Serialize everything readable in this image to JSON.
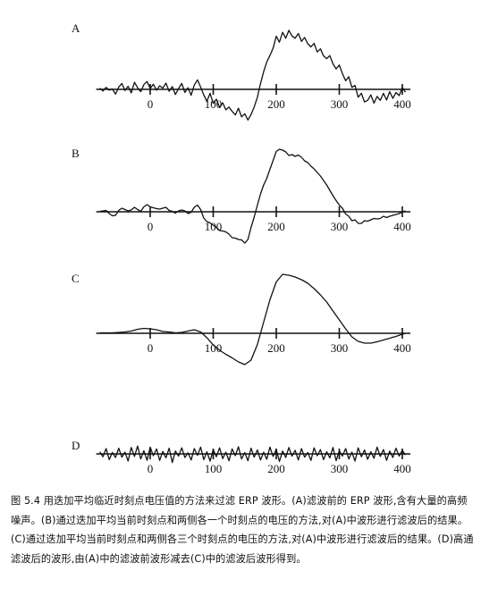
{
  "figure": {
    "caption": "图 5.4  用迭加平均临近时刻点电压值的方法来过滤 ERP 波形。(A)滤波前的 ERP 波形,含有大量的高频噪声。(B)通过迭加平均当前时刻点和两侧各一个时刻点的电压的方法,对(A)中波形进行滤波后的结果。(C)通过迭加平均当前时刻点和两侧各三个时刻点的电压的方法,对(A)中波形进行滤波后的结果。(D)高通滤波后的波形,由(A)中的滤波前波形减去(C)中的滤波后波形得到。"
  },
  "chart_data": [
    {
      "type": "line",
      "panel_label": "A",
      "x_ticks": [
        0,
        100,
        200,
        300,
        400
      ],
      "x_tick_labels": [
        "0",
        "100",
        "200",
        "300",
        "400"
      ],
      "xlim": [
        -80,
        410
      ],
      "series": [
        {
          "x": [
            -80,
            -75,
            -70,
            -65,
            -60,
            -55,
            -50,
            -45,
            -40,
            -35,
            -30,
            -25,
            -20,
            -15,
            -10,
            -5,
            0,
            5,
            10,
            15,
            20,
            25,
            30,
            35,
            40,
            45,
            50,
            55,
            60,
            65,
            70,
            75,
            80,
            85,
            90,
            95,
            100,
            105,
            110,
            115,
            120,
            125,
            130,
            135,
            140,
            145,
            150,
            155,
            160,
            165,
            170,
            175,
            180,
            185,
            190,
            195,
            200,
            205,
            210,
            215,
            220,
            225,
            230,
            235,
            240,
            245,
            250,
            255,
            260,
            265,
            270,
            275,
            280,
            285,
            290,
            295,
            300,
            305,
            310,
            315,
            320,
            325,
            330,
            335,
            340,
            345,
            350,
            355,
            360,
            365,
            370,
            375,
            380,
            385,
            390,
            395,
            400,
            405
          ],
          "y": [
            0.3,
            -0.4,
            0.5,
            -0.2,
            0.1,
            -1.2,
            0.6,
            1.5,
            -0.3,
            0.8,
            -0.9,
            1.8,
            0.4,
            -0.6,
            1.2,
            2.0,
            0.2,
            1.3,
            -0.2,
            0.9,
            0.3,
            1.6,
            -0.5,
            0.7,
            -1.3,
            0.2,
            1.5,
            -0.8,
            0.4,
            -1.5,
            1.1,
            2.4,
            0.6,
            -1.4,
            -3.0,
            -1.0,
            -3.6,
            -2.5,
            -4.6,
            -3.4,
            -5.2,
            -4.5,
            -5.6,
            -6.5,
            -4.8,
            -7.0,
            -6.2,
            -7.8,
            -6.4,
            -4.5,
            -2.0,
            1.5,
            4.5,
            7.0,
            8.6,
            10.5,
            13.5,
            12.0,
            14.5,
            13.0,
            15.0,
            13.6,
            13.0,
            14.2,
            12.2,
            13.2,
            11.6,
            10.8,
            11.7,
            9.5,
            10.3,
            8.5,
            7.8,
            8.6,
            6.5,
            5.2,
            6.2,
            4.0,
            2.2,
            3.2,
            0.5,
            1.0,
            -2.0,
            -1.0,
            -3.2,
            -2.8,
            -1.4,
            -3.5,
            -1.8,
            -2.8,
            -1.0,
            -2.7,
            -0.6,
            -2.3,
            -0.8,
            -1.6,
            0.5,
            -0.7
          ]
        }
      ]
    },
    {
      "type": "line",
      "panel_label": "B",
      "x_ticks": [
        0,
        100,
        200,
        300,
        400
      ],
      "x_tick_labels": [
        "0",
        "100",
        "200",
        "300",
        "400"
      ],
      "xlim": [
        -80,
        410
      ],
      "series": [
        {
          "x": [
            -80,
            -75,
            -70,
            -65,
            -60,
            -55,
            -50,
            -45,
            -40,
            -35,
            -30,
            -25,
            -20,
            -15,
            -10,
            -5,
            0,
            5,
            10,
            15,
            20,
            25,
            30,
            35,
            40,
            45,
            50,
            55,
            60,
            65,
            70,
            75,
            80,
            85,
            90,
            95,
            100,
            105,
            110,
            115,
            120,
            125,
            130,
            135,
            140,
            145,
            150,
            155,
            160,
            165,
            170,
            175,
            180,
            185,
            190,
            195,
            200,
            205,
            210,
            215,
            220,
            225,
            230,
            235,
            240,
            245,
            250,
            255,
            260,
            265,
            270,
            275,
            280,
            285,
            290,
            295,
            300,
            305,
            310,
            315,
            320,
            325,
            330,
            335,
            340,
            345,
            350,
            355,
            360,
            365,
            370,
            375,
            380,
            385,
            390,
            395,
            400,
            405
          ],
          "y": [
            0.1,
            0.2,
            0.3,
            -0.4,
            -0.9,
            -0.8,
            0.3,
            0.8,
            0.5,
            0.2,
            0.4,
            1.0,
            0.5,
            0.1,
            1.1,
            1.6,
            1.1,
            0.9,
            0.7,
            0.6,
            0.8,
            1.0,
            0.3,
            0.1,
            -0.3,
            0.2,
            0.4,
            0.2,
            -0.4,
            -0.1,
            1.0,
            1.5,
            0.5,
            -1.4,
            -2.2,
            -2.5,
            -3.0,
            -3.5,
            -4.2,
            -4.3,
            -4.5,
            -5.0,
            -5.8,
            -5.9,
            -6.2,
            -6.3,
            -7.0,
            -6.2,
            -3.5,
            -1.2,
            1.5,
            4.0,
            6.0,
            7.5,
            9.5,
            11.5,
            13.5,
            14.0,
            13.8,
            13.4,
            12.6,
            12.8,
            12.4,
            12.7,
            12.2,
            11.4,
            11.0,
            10.2,
            9.6,
            8.8,
            8.0,
            7.0,
            6.0,
            4.8,
            3.6,
            2.5,
            1.5,
            0.8,
            -0.5,
            -1.0,
            -2.0,
            -1.8,
            -2.6,
            -2.6,
            -2.0,
            -2.1,
            -1.8,
            -1.5,
            -1.6,
            -1.5,
            -1.0,
            -1.3,
            -1.0,
            -0.8,
            -0.6,
            -0.4,
            0.0,
            0.2
          ]
        }
      ]
    },
    {
      "type": "line",
      "panel_label": "C",
      "x_ticks": [
        0,
        100,
        200,
        300,
        400
      ],
      "x_tick_labels": [
        "0",
        "100",
        "200",
        "300",
        "400"
      ],
      "xlim": [
        -80,
        410
      ],
      "series": [
        {
          "x": [
            -80,
            -70,
            -60,
            -50,
            -40,
            -30,
            -20,
            -10,
            0,
            10,
            20,
            30,
            40,
            50,
            60,
            70,
            80,
            90,
            100,
            110,
            120,
            130,
            140,
            150,
            160,
            170,
            180,
            190,
            200,
            210,
            220,
            230,
            240,
            250,
            260,
            270,
            280,
            290,
            300,
            310,
            320,
            330,
            340,
            350,
            360,
            370,
            380,
            390,
            400,
            405
          ],
          "y": [
            0.1,
            0.1,
            0.1,
            0.2,
            0.3,
            0.5,
            0.9,
            1.1,
            1.0,
            0.8,
            0.4,
            0.3,
            0.1,
            0.2,
            0.5,
            0.8,
            0.3,
            -1.0,
            -2.6,
            -3.8,
            -4.7,
            -5.5,
            -6.4,
            -7.0,
            -6.0,
            -2.5,
            2.5,
            7.5,
            11.5,
            13.2,
            13.0,
            12.6,
            12.0,
            11.2,
            10.0,
            8.6,
            7.0,
            5.0,
            3.0,
            1.0,
            -0.8,
            -1.8,
            -2.2,
            -2.2,
            -1.9,
            -1.5,
            -1.1,
            -0.7,
            -0.2,
            0.0
          ]
        }
      ]
    },
    {
      "type": "line",
      "panel_label": "D",
      "x_ticks": [
        0,
        100,
        200,
        300,
        400
      ],
      "x_tick_labels": [
        "0",
        "100",
        "200",
        "300",
        "400"
      ],
      "xlim": [
        -80,
        410
      ],
      "series": [
        {
          "x": [
            -80,
            -75,
            -70,
            -65,
            -60,
            -55,
            -50,
            -45,
            -40,
            -35,
            -30,
            -25,
            -20,
            -15,
            -10,
            -5,
            0,
            5,
            10,
            15,
            20,
            25,
            30,
            35,
            40,
            45,
            50,
            55,
            60,
            65,
            70,
            75,
            80,
            85,
            90,
            95,
            100,
            105,
            110,
            115,
            120,
            125,
            130,
            135,
            140,
            145,
            150,
            155,
            160,
            165,
            170,
            175,
            180,
            185,
            190,
            195,
            200,
            205,
            210,
            215,
            220,
            225,
            230,
            235,
            240,
            245,
            250,
            255,
            260,
            265,
            270,
            275,
            280,
            285,
            290,
            295,
            300,
            305,
            310,
            315,
            320,
            325,
            330,
            335,
            340,
            345,
            350,
            355,
            360,
            365,
            370,
            375,
            380,
            385,
            390,
            395,
            400,
            405
          ],
          "y": [
            0.6,
            -0.8,
            1.5,
            -1.6,
            0.4,
            -1.0,
            1.6,
            -0.9,
            0.5,
            -2.0,
            1.8,
            -0.7,
            2.2,
            -1.4,
            0.9,
            -1.8,
            1.9,
            -0.5,
            1.4,
            -1.8,
            0.7,
            -1.1,
            1.6,
            -2.4,
            0.8,
            -0.6,
            1.7,
            -1.0,
            0.3,
            -1.7,
            1.5,
            -0.4,
            1.9,
            -1.6,
            0.6,
            -2.0,
            1.2,
            -0.8,
            1.7,
            -1.3,
            0.5,
            -1.9,
            1.4,
            -0.5,
            2.0,
            -1.4,
            0.4,
            -1.9,
            1.6,
            -0.9,
            1.1,
            -1.7,
            0.5,
            -1.5,
            1.9,
            -0.7,
            1.3,
            -2.1,
            0.8,
            -1.0,
            1.8,
            -0.6,
            1.0,
            -1.7,
            1.5,
            -0.9,
            0.4,
            -1.8,
            1.7,
            -0.5,
            1.2,
            -1.6,
            0.6,
            -1.1,
            1.8,
            -1.9,
            0.9,
            -0.6,
            1.5,
            -1.4,
            0.5,
            -2.0,
            1.7,
            -0.8,
            1.1,
            -1.5,
            0.6,
            -1.2,
            1.9,
            -0.7,
            1.2,
            -1.8,
            0.8,
            -1.0,
            1.6,
            -0.6,
            1.0,
            -0.3
          ]
        }
      ]
    }
  ]
}
